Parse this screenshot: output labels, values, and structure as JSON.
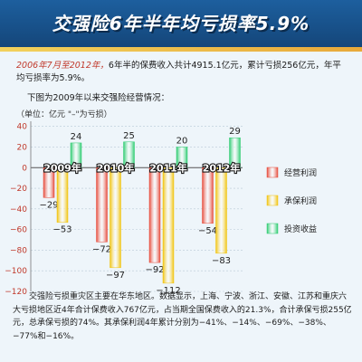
{
  "header": {
    "title": "交强险6年半年均亏损率5.9%"
  },
  "intro": {
    "highlight": "2006年7月至2012年，",
    "text": "6年半的保费收入共计4915.1亿元，累计亏损256亿元，年平均亏损率为5.9%。",
    "subtitle": "下图为2009年以来交强险经营情况："
  },
  "chart_data": {
    "type": "bar",
    "unit_label": "（单位：亿元 \"–\"为亏损）",
    "categories": [
      "2009年",
      "2010年",
      "2011年",
      "2012年"
    ],
    "series": [
      {
        "name": "经营利润",
        "color": "#e74c3c",
        "values": [
          -29,
          -72,
          -92,
          -54
        ]
      },
      {
        "name": "承保利润",
        "color": "#f1c40f",
        "values": [
          -53,
          -97,
          -112,
          -83
        ]
      },
      {
        "name": "投资收益",
        "color": "#2ecc71",
        "values": [
          24,
          25,
          20,
          29
        ]
      }
    ],
    "value_labels": [
      [
        "−29",
        "−53",
        "24"
      ],
      [
        "−72",
        "−97",
        "25"
      ],
      [
        "−92",
        "−112",
        "20"
      ],
      [
        "−54",
        "−83",
        "29"
      ]
    ],
    "yticks": [
      40,
      20,
      0,
      -20,
      -40,
      -60,
      -80,
      -100,
      -120
    ],
    "ytick_labels": [
      "40",
      "20",
      "0",
      "−20",
      "−40",
      "−60",
      "−80",
      "−100",
      "−120"
    ],
    "ylim": [
      -120,
      45
    ],
    "legend_position": "right",
    "grid": true
  },
  "footer": {
    "text": "交强险亏损重灾区主要在华东地区。数据显示，上海、宁波、浙江、安徽、江苏和重庆六大亏损地区近4年合计保费收入767亿元，占当期全国保费收入的21.3%，合计承保亏损255亿元，总承保亏损的74%。其承保利润4年累计分别为−41%、−14%、−69%、−38%、−77%和−16%。"
  }
}
